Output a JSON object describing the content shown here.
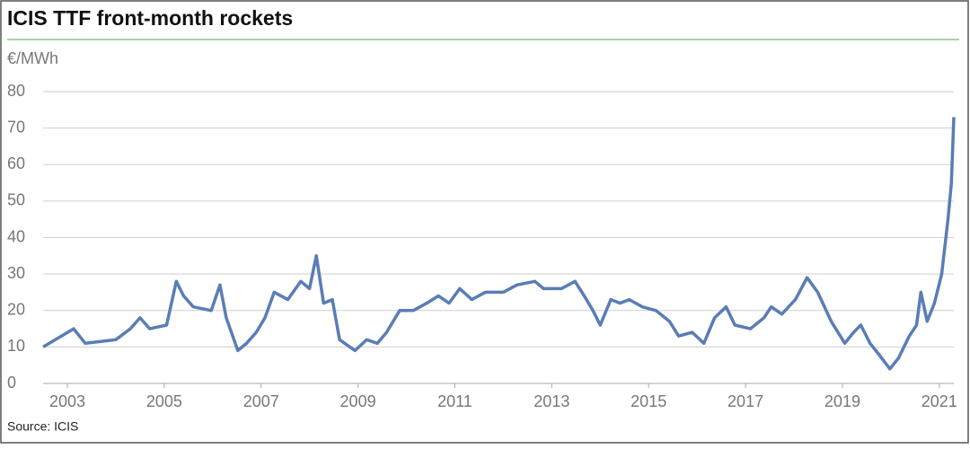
{
  "chart_data": {
    "type": "line",
    "title": "ICIS TTF front-month rockets",
    "y_label": "€/MWh",
    "source": "Source: ICIS",
    "xlim": [
      2002.5,
      2021.3
    ],
    "xticks": [
      2003,
      2005,
      2007,
      2009,
      2011,
      2013,
      2015,
      2017,
      2019,
      2021
    ],
    "ylim": [
      0,
      80
    ],
    "yticks": [
      0,
      10,
      20,
      30,
      40,
      50,
      60,
      70,
      80
    ],
    "grid": true,
    "x": [
      2002.5,
      2003.13,
      2003.37,
      2004.0,
      2004.3,
      2004.5,
      2004.7,
      2005.05,
      2005.25,
      2005.4,
      2005.6,
      2005.97,
      2006.15,
      2006.28,
      2006.52,
      2006.7,
      2006.9,
      2007.08,
      2007.27,
      2007.55,
      2007.82,
      2008.0,
      2008.14,
      2008.29,
      2008.47,
      2008.62,
      2008.94,
      2009.18,
      2009.4,
      2009.59,
      2009.86,
      2010.14,
      2010.42,
      2010.66,
      2010.88,
      2011.1,
      2011.35,
      2011.63,
      2012.0,
      2012.28,
      2012.65,
      2012.83,
      2013.2,
      2013.48,
      2013.67,
      2013.85,
      2014.0,
      2014.22,
      2014.41,
      2014.6,
      2014.87,
      2015.15,
      2015.43,
      2015.62,
      2015.9,
      2016.14,
      2016.36,
      2016.6,
      2016.78,
      2017.1,
      2017.38,
      2017.53,
      2017.75,
      2018.03,
      2018.27,
      2018.49,
      2018.77,
      2019.05,
      2019.23,
      2019.38,
      2019.57,
      2019.75,
      2019.98,
      2020.16,
      2020.38,
      2020.53,
      2020.62,
      2020.75,
      2020.9,
      2021.05,
      2021.18,
      2021.25,
      2021.3
    ],
    "series": [
      {
        "name": "TTF front-month",
        "color": "#5a7db5",
        "values": [
          10,
          15,
          11,
          12,
          15,
          18,
          15,
          16,
          28,
          24,
          21,
          20,
          27,
          18,
          9,
          11,
          14,
          18,
          25,
          23,
          28,
          26,
          35,
          22,
          23,
          12,
          9,
          12,
          11,
          14,
          20,
          20,
          22,
          24,
          22,
          26,
          23,
          25,
          25,
          27,
          28,
          26,
          26,
          28,
          24,
          20,
          16,
          23,
          22,
          23,
          21,
          20,
          17,
          13,
          14,
          11,
          18,
          21,
          16,
          15,
          18,
          21,
          19,
          23,
          29,
          25,
          17,
          11,
          14,
          16,
          11,
          8,
          4,
          7,
          13,
          16,
          25,
          17,
          22,
          30,
          45,
          55,
          73
        ]
      }
    ]
  }
}
